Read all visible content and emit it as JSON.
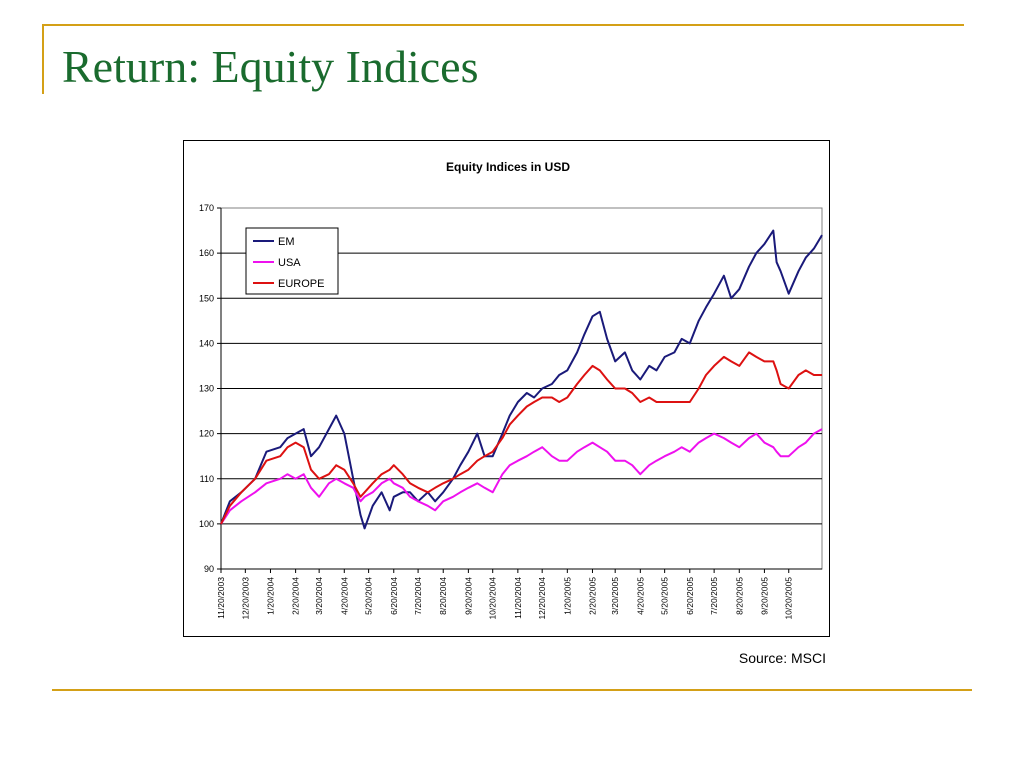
{
  "slide": {
    "title": "Return: Equity Indices",
    "source": "Source: MSCI"
  },
  "colors": {
    "accent_rule": "#d4a017",
    "title": "#1a6b2e",
    "EM": "#1a1a7a",
    "USA": "#ee11ee",
    "EUROPE": "#dd1111"
  },
  "chart_data": {
    "type": "line",
    "title": "Equity Indices in USD",
    "xlabel": "",
    "ylabel": "",
    "ylim": [
      90,
      170
    ],
    "yticks": [
      90,
      100,
      110,
      120,
      130,
      140,
      150,
      160,
      170
    ],
    "grid": true,
    "legend_position": "top-left",
    "xlim": [
      "11/20/2003",
      "11/30/2005"
    ],
    "xtick_labels": [
      "11/20/2003",
      "12/20/2003",
      "1/20/2004",
      "2/20/2004",
      "3/20/2004",
      "4/20/2004",
      "5/20/2004",
      "6/20/2004",
      "7/20/2004",
      "8/20/2004",
      "9/20/2004",
      "10/20/2004",
      "11/20/2004",
      "12/20/2004",
      "1/20/2005",
      "2/20/2005",
      "3/20/2005",
      "4/20/2005",
      "5/20/2005",
      "6/20/2005",
      "7/20/2005",
      "8/20/2005",
      "9/20/2005",
      "10/20/2005"
    ],
    "series": [
      {
        "name": "EM",
        "color": "#1a1a7a",
        "points": [
          [
            "11/20/2003",
            100
          ],
          [
            "12/1/2003",
            105
          ],
          [
            "12/15/2003",
            107
          ],
          [
            "1/1/2004",
            110
          ],
          [
            "1/15/2004",
            116
          ],
          [
            "2/1/2004",
            117
          ],
          [
            "2/10/2004",
            119
          ],
          [
            "2/20/2004",
            120
          ],
          [
            "3/1/2004",
            121
          ],
          [
            "3/10/2004",
            115
          ],
          [
            "3/20/2004",
            117
          ],
          [
            "4/1/2004",
            121
          ],
          [
            "4/10/2004",
            124
          ],
          [
            "4/20/2004",
            120
          ],
          [
            "5/1/2004",
            110
          ],
          [
            "5/10/2004",
            102
          ],
          [
            "5/15/2004",
            99
          ],
          [
            "5/25/2004",
            104
          ],
          [
            "6/5/2004",
            107
          ],
          [
            "6/15/2004",
            103
          ],
          [
            "6/20/2004",
            106
          ],
          [
            "7/1/2004",
            107
          ],
          [
            "7/10/2004",
            107
          ],
          [
            "7/20/2004",
            105
          ],
          [
            "8/1/2004",
            107
          ],
          [
            "8/10/2004",
            105
          ],
          [
            "8/20/2004",
            107
          ],
          [
            "9/1/2004",
            110
          ],
          [
            "9/10/2004",
            113
          ],
          [
            "9/20/2004",
            116
          ],
          [
            "10/1/2004",
            120
          ],
          [
            "10/10/2004",
            115
          ],
          [
            "10/20/2004",
            115
          ],
          [
            "11/1/2004",
            120
          ],
          [
            "11/10/2004",
            124
          ],
          [
            "11/20/2004",
            127
          ],
          [
            "12/1/2004",
            129
          ],
          [
            "12/10/2004",
            128
          ],
          [
            "12/20/2004",
            130
          ],
          [
            "1/1/2005",
            131
          ],
          [
            "1/10/2005",
            133
          ],
          [
            "1/20/2005",
            134
          ],
          [
            "2/1/2005",
            138
          ],
          [
            "2/10/2005",
            142
          ],
          [
            "2/20/2005",
            146
          ],
          [
            "3/1/2005",
            147
          ],
          [
            "3/10/2005",
            141
          ],
          [
            "3/20/2005",
            136
          ],
          [
            "4/1/2005",
            138
          ],
          [
            "4/10/2005",
            134
          ],
          [
            "4/20/2005",
            132
          ],
          [
            "5/1/2005",
            135
          ],
          [
            "5/10/2005",
            134
          ],
          [
            "5/20/2005",
            137
          ],
          [
            "6/1/2005",
            138
          ],
          [
            "6/10/2005",
            141
          ],
          [
            "6/20/2005",
            140
          ],
          [
            "7/1/2005",
            145
          ],
          [
            "7/10/2005",
            148
          ],
          [
            "7/20/2005",
            151
          ],
          [
            "8/1/2005",
            155
          ],
          [
            "8/10/2005",
            150
          ],
          [
            "8/20/2005",
            152
          ],
          [
            "9/1/2005",
            157
          ],
          [
            "9/10/2005",
            160
          ],
          [
            "9/20/2005",
            162
          ],
          [
            "10/1/2005",
            165
          ],
          [
            "10/5/2005",
            158
          ],
          [
            "10/10/2005",
            156
          ],
          [
            "10/20/2005",
            151
          ],
          [
            "11/1/2005",
            156
          ],
          [
            "11/10/2005",
            159
          ],
          [
            "11/20/2005",
            161
          ],
          [
            "11/30/2005",
            164
          ]
        ]
      },
      {
        "name": "USA",
        "color": "#ee11ee",
        "points": [
          [
            "11/20/2003",
            100
          ],
          [
            "12/1/2003",
            103
          ],
          [
            "12/15/2003",
            105
          ],
          [
            "1/1/2004",
            107
          ],
          [
            "1/15/2004",
            109
          ],
          [
            "2/1/2004",
            110
          ],
          [
            "2/10/2004",
            111
          ],
          [
            "2/20/2004",
            110
          ],
          [
            "3/1/2004",
            111
          ],
          [
            "3/10/2004",
            108
          ],
          [
            "3/20/2004",
            106
          ],
          [
            "4/1/2004",
            109
          ],
          [
            "4/10/2004",
            110
          ],
          [
            "4/20/2004",
            109
          ],
          [
            "5/1/2004",
            108
          ],
          [
            "5/10/2004",
            105
          ],
          [
            "5/15/2004",
            106
          ],
          [
            "5/25/2004",
            107
          ],
          [
            "6/5/2004",
            109
          ],
          [
            "6/15/2004",
            110
          ],
          [
            "6/20/2004",
            109
          ],
          [
            "7/1/2004",
            108
          ],
          [
            "7/10/2004",
            106
          ],
          [
            "7/20/2004",
            105
          ],
          [
            "8/1/2004",
            104
          ],
          [
            "8/10/2004",
            103
          ],
          [
            "8/20/2004",
            105
          ],
          [
            "9/1/2004",
            106
          ],
          [
            "9/10/2004",
            107
          ],
          [
            "9/20/2004",
            108
          ],
          [
            "10/1/2004",
            109
          ],
          [
            "10/10/2004",
            108
          ],
          [
            "10/20/2004",
            107
          ],
          [
            "11/1/2004",
            111
          ],
          [
            "11/10/2004",
            113
          ],
          [
            "11/20/2004",
            114
          ],
          [
            "12/1/2004",
            115
          ],
          [
            "12/10/2004",
            116
          ],
          [
            "12/20/2004",
            117
          ],
          [
            "1/1/2005",
            115
          ],
          [
            "1/10/2005",
            114
          ],
          [
            "1/20/2005",
            114
          ],
          [
            "2/1/2005",
            116
          ],
          [
            "2/10/2005",
            117
          ],
          [
            "2/20/2005",
            118
          ],
          [
            "3/1/2005",
            117
          ],
          [
            "3/10/2005",
            116
          ],
          [
            "3/20/2005",
            114
          ],
          [
            "4/1/2005",
            114
          ],
          [
            "4/10/2005",
            113
          ],
          [
            "4/20/2005",
            111
          ],
          [
            "5/1/2005",
            113
          ],
          [
            "5/10/2005",
            114
          ],
          [
            "5/20/2005",
            115
          ],
          [
            "6/1/2005",
            116
          ],
          [
            "6/10/2005",
            117
          ],
          [
            "6/20/2005",
            116
          ],
          [
            "7/1/2005",
            118
          ],
          [
            "7/10/2005",
            119
          ],
          [
            "7/20/2005",
            120
          ],
          [
            "8/1/2005",
            119
          ],
          [
            "8/10/2005",
            118
          ],
          [
            "8/20/2005",
            117
          ],
          [
            "9/1/2005",
            119
          ],
          [
            "9/10/2005",
            120
          ],
          [
            "9/20/2005",
            118
          ],
          [
            "10/1/2005",
            117
          ],
          [
            "10/5/2005",
            116
          ],
          [
            "10/10/2005",
            115
          ],
          [
            "10/20/2005",
            115
          ],
          [
            "11/1/2005",
            117
          ],
          [
            "11/10/2005",
            118
          ],
          [
            "11/20/2005",
            120
          ],
          [
            "11/30/2005",
            121
          ]
        ]
      },
      {
        "name": "EUROPE",
        "color": "#dd1111",
        "points": [
          [
            "11/20/2003",
            100
          ],
          [
            "12/1/2003",
            104
          ],
          [
            "12/15/2003",
            107
          ],
          [
            "1/1/2004",
            110
          ],
          [
            "1/15/2004",
            114
          ],
          [
            "2/1/2004",
            115
          ],
          [
            "2/10/2004",
            117
          ],
          [
            "2/20/2004",
            118
          ],
          [
            "3/1/2004",
            117
          ],
          [
            "3/10/2004",
            112
          ],
          [
            "3/20/2004",
            110
          ],
          [
            "4/1/2004",
            111
          ],
          [
            "4/10/2004",
            113
          ],
          [
            "4/20/2004",
            112
          ],
          [
            "5/1/2004",
            109
          ],
          [
            "5/10/2004",
            106
          ],
          [
            "5/15/2004",
            107
          ],
          [
            "5/25/2004",
            109
          ],
          [
            "6/5/2004",
            111
          ],
          [
            "6/15/2004",
            112
          ],
          [
            "6/20/2004",
            113
          ],
          [
            "7/1/2004",
            111
          ],
          [
            "7/10/2004",
            109
          ],
          [
            "7/20/2004",
            108
          ],
          [
            "8/1/2004",
            107
          ],
          [
            "8/10/2004",
            108
          ],
          [
            "8/20/2004",
            109
          ],
          [
            "9/1/2004",
            110
          ],
          [
            "9/10/2004",
            111
          ],
          [
            "9/20/2004",
            112
          ],
          [
            "10/1/2004",
            114
          ],
          [
            "10/10/2004",
            115
          ],
          [
            "10/20/2004",
            116
          ],
          [
            "11/1/2004",
            119
          ],
          [
            "11/10/2004",
            122
          ],
          [
            "11/20/2004",
            124
          ],
          [
            "12/1/2004",
            126
          ],
          [
            "12/10/2004",
            127
          ],
          [
            "12/20/2004",
            128
          ],
          [
            "1/1/2005",
            128
          ],
          [
            "1/10/2005",
            127
          ],
          [
            "1/20/2005",
            128
          ],
          [
            "2/1/2005",
            131
          ],
          [
            "2/10/2005",
            133
          ],
          [
            "2/20/2005",
            135
          ],
          [
            "3/1/2005",
            134
          ],
          [
            "3/10/2005",
            132
          ],
          [
            "3/20/2005",
            130
          ],
          [
            "4/1/2005",
            130
          ],
          [
            "4/10/2005",
            129
          ],
          [
            "4/20/2005",
            127
          ],
          [
            "5/1/2005",
            128
          ],
          [
            "5/10/2005",
            127
          ],
          [
            "5/20/2005",
            127
          ],
          [
            "6/1/2005",
            127
          ],
          [
            "6/10/2005",
            127
          ],
          [
            "6/20/2005",
            127
          ],
          [
            "7/1/2005",
            130
          ],
          [
            "7/10/2005",
            133
          ],
          [
            "7/20/2005",
            135
          ],
          [
            "8/1/2005",
            137
          ],
          [
            "8/10/2005",
            136
          ],
          [
            "8/20/2005",
            135
          ],
          [
            "9/1/2005",
            138
          ],
          [
            "9/10/2005",
            137
          ],
          [
            "9/20/2005",
            136
          ],
          [
            "10/1/2005",
            136
          ],
          [
            "10/5/2005",
            134
          ],
          [
            "10/10/2005",
            131
          ],
          [
            "10/20/2005",
            130
          ],
          [
            "11/1/2005",
            133
          ],
          [
            "11/10/2005",
            134
          ],
          [
            "11/20/2005",
            133
          ],
          [
            "11/30/2005",
            133
          ]
        ]
      }
    ]
  }
}
